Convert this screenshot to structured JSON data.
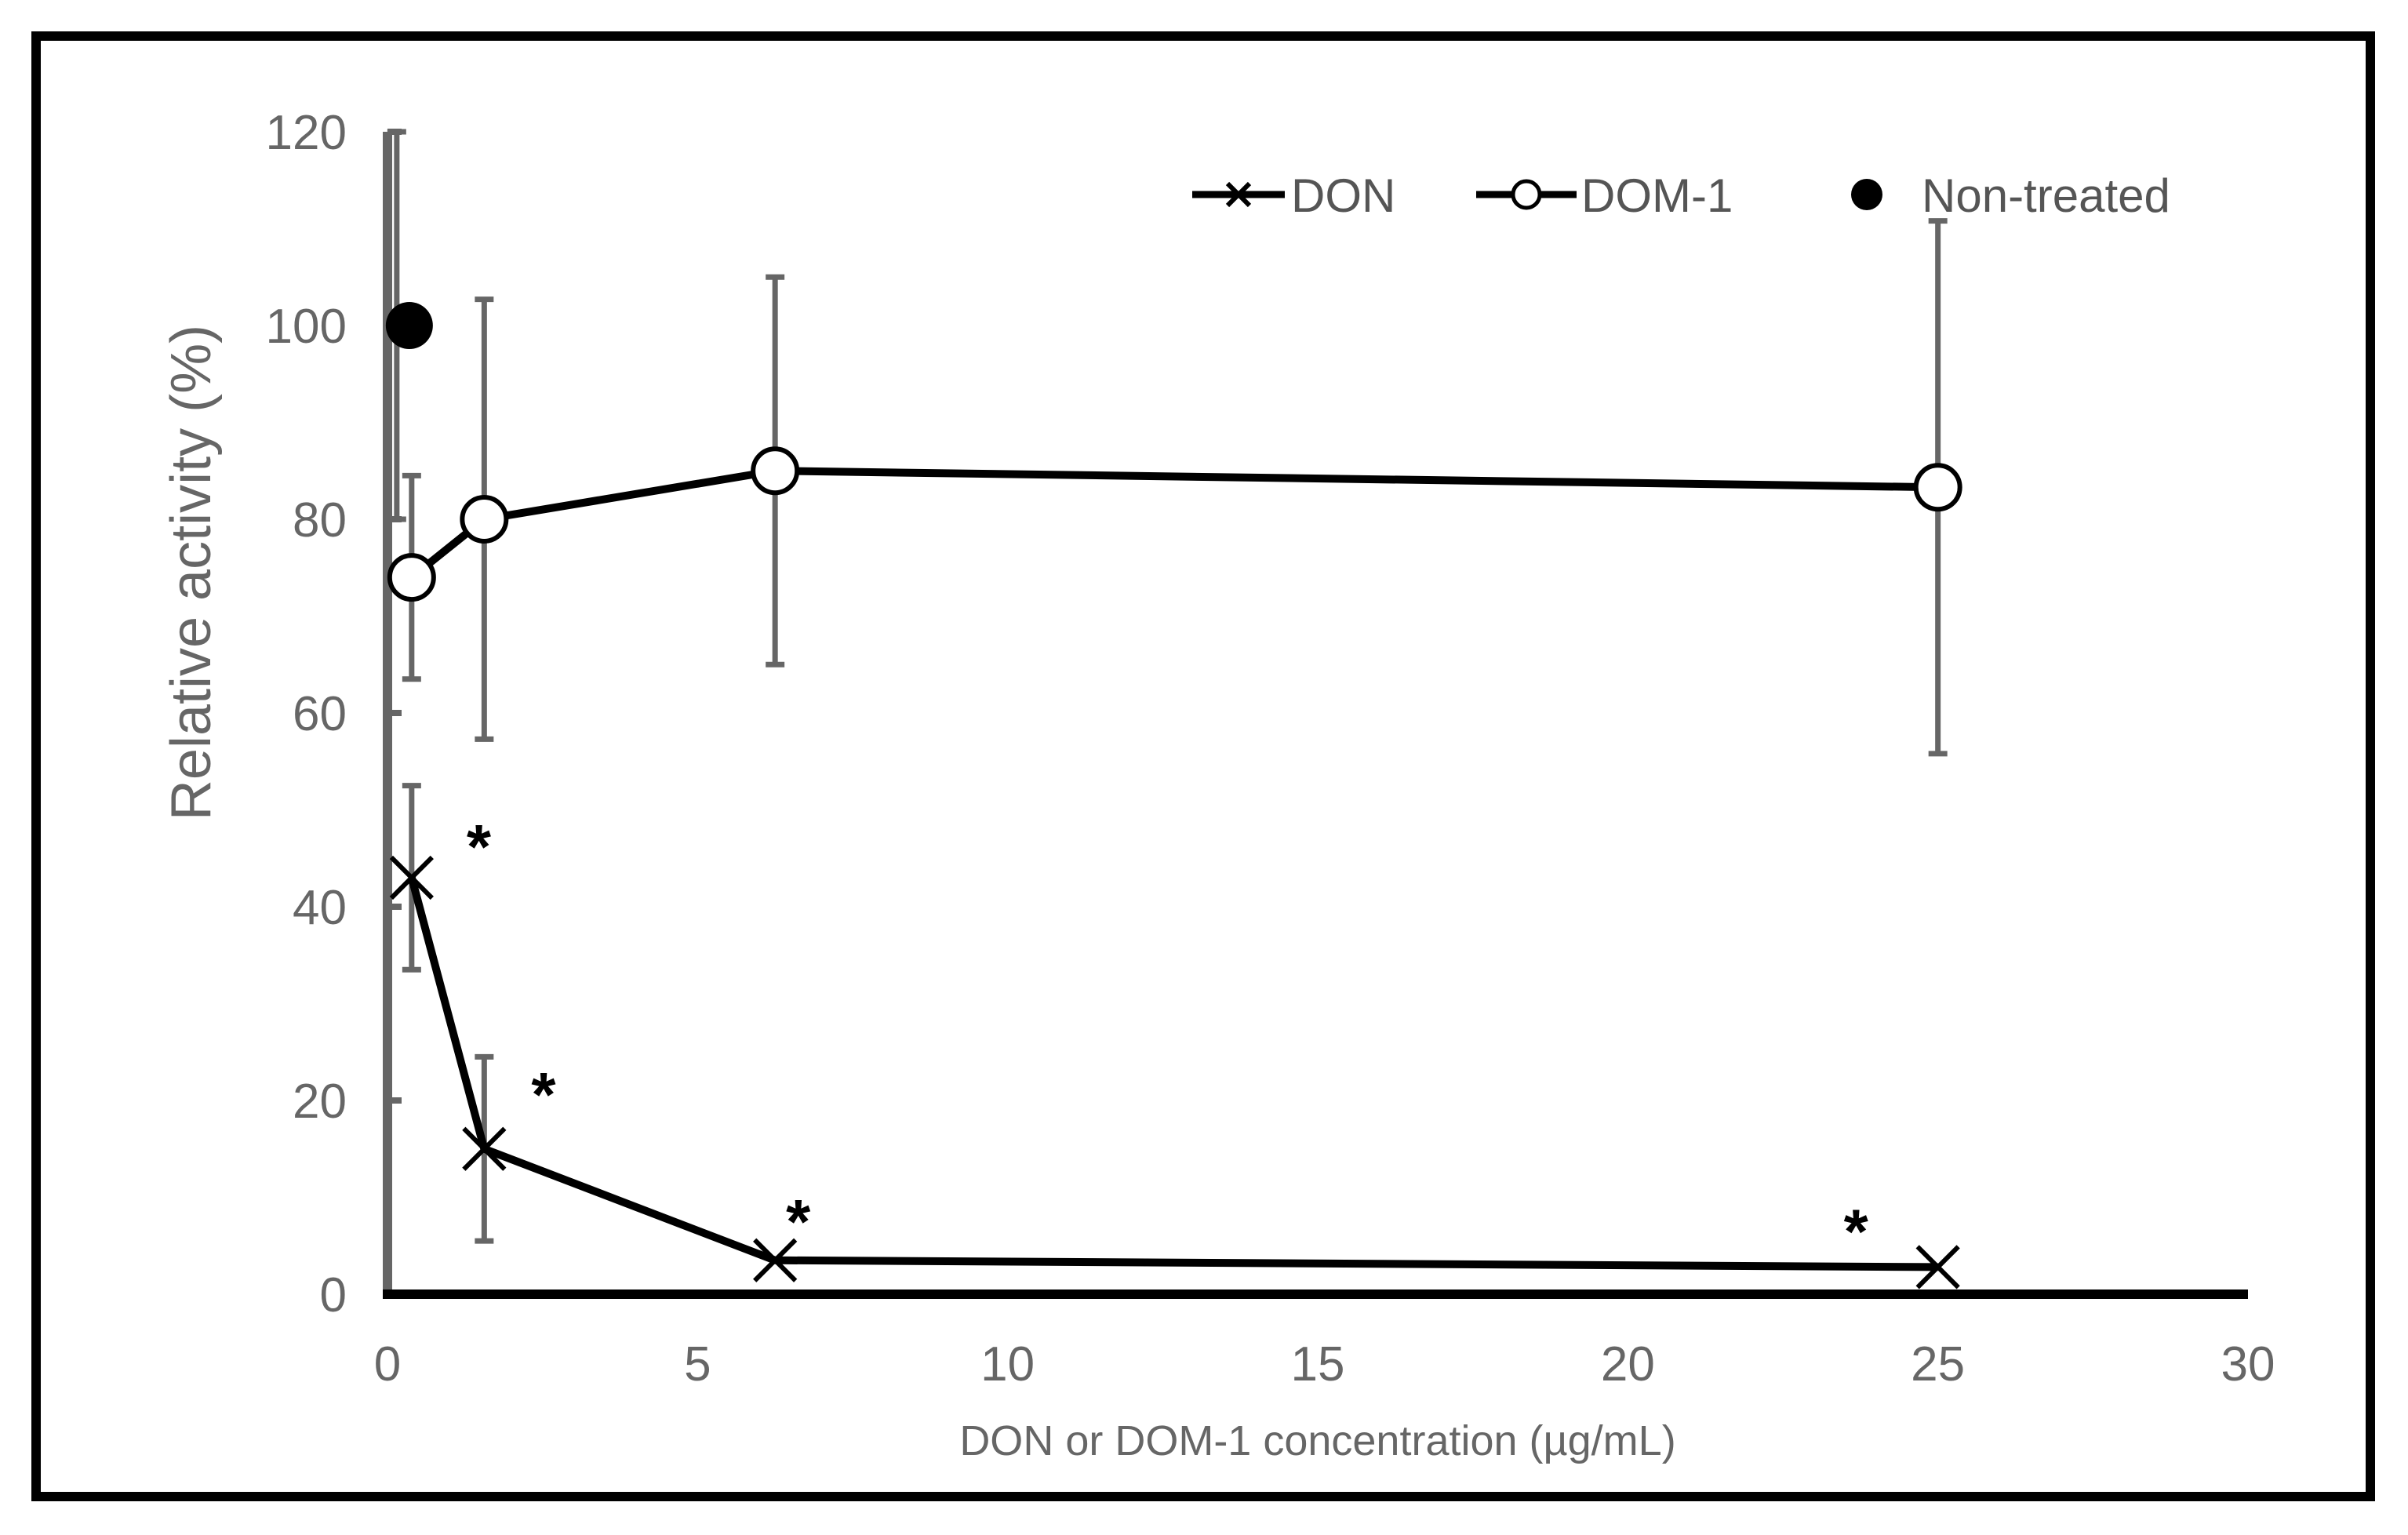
{
  "chart_data": {
    "type": "line",
    "title": "",
    "xlabel": "DON or DOM-1 concentration (µg/mL)",
    "ylabel": "Relative activity (%)",
    "xlim": [
      0,
      30
    ],
    "ylim": [
      0,
      120
    ],
    "x_ticks": [
      "0",
      "5",
      "10",
      "15",
      "20",
      "25",
      "30"
    ],
    "y_ticks": [
      "0",
      "20",
      "40",
      "60",
      "80",
      "100",
      "120"
    ],
    "legend_position": "top-right",
    "series": [
      {
        "name": "DON",
        "marker": "cross",
        "x": [
          0.39,
          1.56,
          6.25,
          25
        ],
        "y": [
          43,
          15,
          3.5,
          2.8
        ],
        "error": [
          9.5,
          9.5,
          0,
          0
        ],
        "annotations": [
          "*",
          "*",
          "*",
          "*"
        ]
      },
      {
        "name": "DOM-1",
        "marker": "open-circle",
        "x": [
          0.39,
          1.56,
          6.25,
          25
        ],
        "y": [
          74,
          80,
          85,
          83.3
        ],
        "error": [
          10.5,
          22.7,
          20,
          27.5
        ]
      },
      {
        "name": "Non-treated",
        "marker": "filled-circle",
        "x": [
          0.15
        ],
        "y": [
          100
        ],
        "error": [
          20
        ]
      }
    ]
  }
}
